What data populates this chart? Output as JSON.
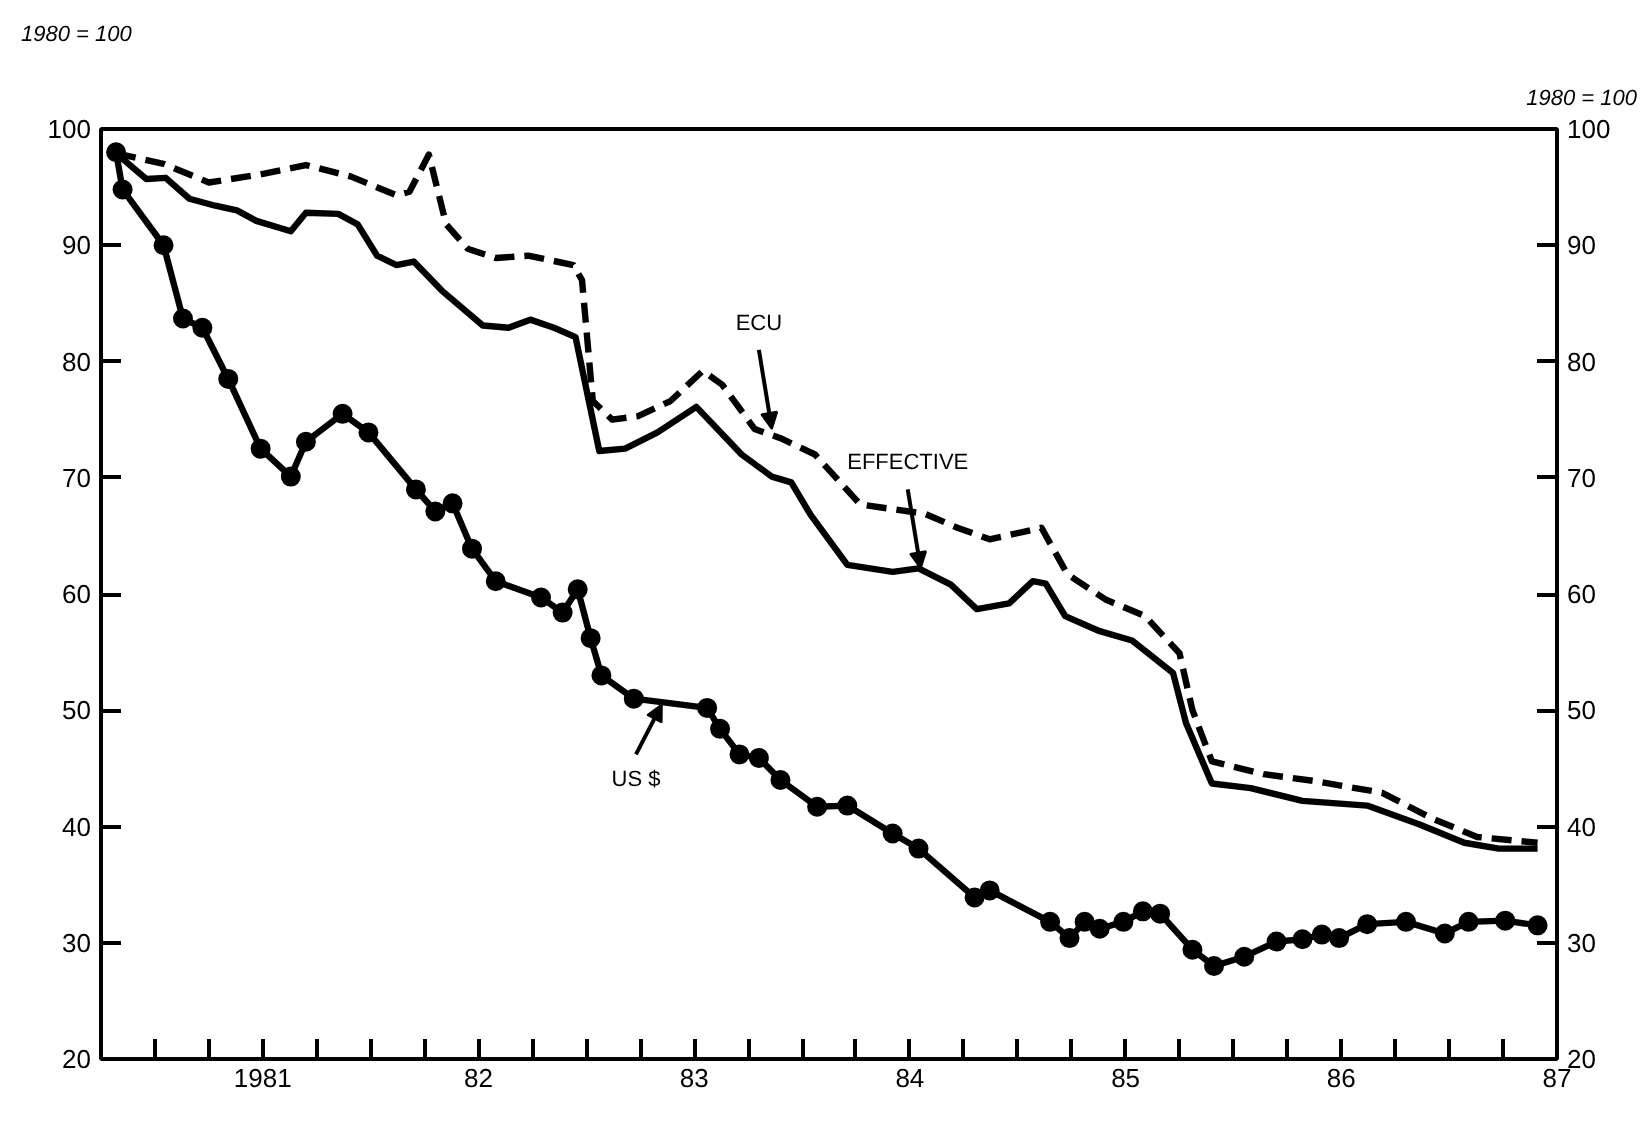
{
  "chart_data": {
    "type": "line",
    "ylabel": "1980 = 100",
    "y2label": "1980 = 100",
    "xlim": [
      1980.25,
      1987.0
    ],
    "ylim": [
      20,
      100
    ],
    "yticks": [
      20,
      30,
      40,
      50,
      60,
      70,
      80,
      90,
      100
    ],
    "y2lim": [
      20,
      100
    ],
    "y2ticks": [
      20,
      30,
      40,
      50,
      60,
      70,
      80,
      90,
      100
    ],
    "xticks": [
      {
        "value": 1980.5,
        "label": null
      },
      {
        "value": 1980.75,
        "label": null
      },
      1981,
      {
        "value": 1981.25,
        "label": null
      },
      {
        "value": 1981.5,
        "label": null
      },
      {
        "value": 1981.75,
        "label": null
      },
      {
        "value": 1982,
        "label": "82"
      },
      {
        "value": 1982.25,
        "label": null
      },
      {
        "value": 1982.5,
        "label": null
      },
      {
        "value": 1982.75,
        "label": null
      },
      {
        "value": 1983,
        "label": "83"
      },
      {
        "value": 1983.25,
        "label": null
      },
      {
        "value": 1983.5,
        "label": null
      },
      {
        "value": 1983.75,
        "label": null
      },
      {
        "value": 1984,
        "label": "84"
      },
      {
        "value": 1984.25,
        "label": null
      },
      {
        "value": 1984.5,
        "label": null
      },
      {
        "value": 1984.75,
        "label": null
      },
      {
        "value": 1985,
        "label": "85"
      },
      {
        "value": 1985.25,
        "label": null
      },
      {
        "value": 1985.5,
        "label": null
      },
      {
        "value": 1985.75,
        "label": null
      },
      {
        "value": 1986,
        "label": "86"
      },
      {
        "value": 1986.25,
        "label": null
      },
      {
        "value": 1986.5,
        "label": null
      },
      {
        "value": 1986.75,
        "label": null
      },
      {
        "value": 1987,
        "label": "87"
      }
    ],
    "grid": false,
    "series": [
      {
        "color": "#000000",
        "line_style": "solid",
        "marker": "none",
        "x": [
          1980.32,
          1980.46,
          1980.55,
          1980.66,
          1980.78,
          1980.88,
          1980.97,
          1981.13,
          1981.2,
          1981.35,
          1981.44,
          1981.53,
          1981.62,
          1981.7,
          1981.83,
          1982.02,
          1982.14,
          1982.24,
          1982.35,
          1982.45,
          1982.56,
          1982.68,
          1982.83,
          1983.01,
          1983.22,
          1983.36,
          1983.45,
          1983.54,
          1983.71,
          1983.92,
          1984.04,
          1984.19,
          1984.31,
          1984.46,
          1984.57,
          1984.63,
          1984.72,
          1984.88,
          1985.03,
          1985.22,
          1985.28,
          1985.4,
          1985.58,
          1985.82,
          1986.12,
          1986.36,
          1986.57,
          1986.73,
          1986.91
        ],
        "values": [
          97.9,
          95.7,
          95.8,
          94,
          93.4,
          93,
          92.1,
          91.2,
          92.8,
          92.7,
          91.8,
          89.1,
          88.3,
          88.6,
          86.1,
          83.1,
          82.9,
          83.6,
          82.9,
          82.1,
          72.3,
          72.5,
          73.9,
          76.1,
          72,
          70.1,
          69.6,
          66.8,
          62.5,
          61.9,
          62.2,
          60.8,
          58.7,
          59.2,
          61.1,
          60.9,
          58.1,
          56.8,
          56,
          53.2,
          48.9,
          43.7,
          43.3,
          42.2,
          41.8,
          40.2,
          38.6,
          38.1,
          38.1
        ]
      },
      {
        "color": "#000000",
        "line_style": "dashed",
        "marker": "none",
        "x": [
          1980.32,
          1980.54,
          1980.75,
          1980.99,
          1981.2,
          1981.41,
          1981.62,
          1981.68,
          1981.77,
          1981.85,
          1981.95,
          1982.08,
          1982.23,
          1982.44,
          1982.48,
          1982.53,
          1982.62,
          1982.74,
          1982.89,
          1983.04,
          1983.13,
          1983.28,
          1983.4,
          1983.56,
          1983.77,
          1984.07,
          1984.22,
          1984.37,
          1984.61,
          1984.73,
          1984.91,
          1985.09,
          1985.25,
          1985.31,
          1985.4,
          1985.64,
          1985.88,
          1986.19,
          1986.42,
          1986.63,
          1986.91
        ],
        "values": [
          97.9,
          97,
          95.4,
          96.1,
          96.9,
          95.9,
          94.3,
          94.6,
          97.8,
          91.8,
          89.7,
          88.9,
          89.1,
          88.3,
          87,
          76.6,
          75,
          75.3,
          76.6,
          79.2,
          78,
          74.2,
          73.4,
          72,
          67.7,
          66.9,
          65.7,
          64.7,
          65.7,
          61.7,
          59.5,
          58.1,
          54.9,
          50,
          45.6,
          44.5,
          43.9,
          42.9,
          40.7,
          39.1,
          38.6
        ]
      },
      {
        "color": "#000000",
        "line_style": "solid",
        "marker": "circle",
        "x": [
          1980.32,
          1980.35,
          1980.54,
          1980.63,
          1980.72,
          1980.84,
          1980.99,
          1981.13,
          1981.2,
          1981.37,
          1981.49,
          1981.71,
          1981.8,
          1981.88,
          1981.97,
          1982.08,
          1982.29,
          1982.39,
          1982.46,
          1982.52,
          1982.57,
          1982.72,
          1983.06,
          1983.12,
          1983.21,
          1983.3,
          1983.4,
          1983.57,
          1983.71,
          1983.92,
          1984.04,
          1984.3,
          1984.37,
          1984.65,
          1984.74,
          1984.81,
          1984.88,
          1984.99,
          1985.08,
          1985.16,
          1985.31,
          1985.41,
          1985.55,
          1985.7,
          1985.82,
          1985.91,
          1985.99,
          1986.12,
          1986.3,
          1986.48,
          1986.59,
          1986.76,
          1986.91
        ],
        "values": [
          98,
          94.8,
          90,
          83.7,
          82.9,
          78.5,
          72.5,
          70.1,
          73.1,
          75.5,
          73.9,
          69,
          67.1,
          67.8,
          63.9,
          61.1,
          59.7,
          58.4,
          60.4,
          56.2,
          53,
          51,
          50.2,
          48.4,
          46.2,
          45.9,
          44,
          41.7,
          41.8,
          39.4,
          38.1,
          33.9,
          34.5,
          31.8,
          30.4,
          31.8,
          31.2,
          31.8,
          32.7,
          32.5,
          29.4,
          28,
          28.8,
          30.1,
          30.3,
          30.7,
          30.4,
          31.6,
          31.8,
          30.8,
          31.8,
          31.9,
          31.5
        ]
      }
    ],
    "annotations": [
      {
        "text": "ECU",
        "x": 1983.36,
        "y": 74.2
      },
      {
        "text": "EFFECTIVE",
        "x": 1984.05,
        "y": 62.2
      },
      {
        "text": "US $",
        "x": 1982.85,
        "y": 50.5
      }
    ]
  }
}
